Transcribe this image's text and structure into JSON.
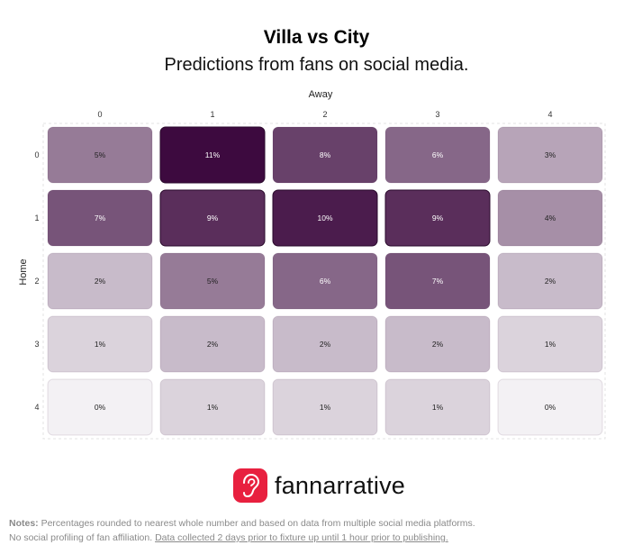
{
  "header": {
    "title": "Villa vs City",
    "subtitle": "Predictions from fans on social media."
  },
  "chart_data": {
    "type": "heatmap",
    "xlabel": "Away",
    "ylabel": "Home",
    "x_categories": [
      "0",
      "1",
      "2",
      "3",
      "4"
    ],
    "y_categories": [
      "0",
      "1",
      "2",
      "3",
      "4"
    ],
    "values": [
      [
        5,
        11,
        8,
        6,
        3
      ],
      [
        7,
        9,
        10,
        9,
        4
      ],
      [
        2,
        5,
        6,
        7,
        2
      ],
      [
        1,
        2,
        2,
        2,
        1
      ],
      [
        0,
        1,
        1,
        1,
        0
      ]
    ],
    "value_suffix": "%",
    "color_high": "#3d0a3f",
    "color_low": "#f3f1f4"
  },
  "brand": {
    "name": "fannarrative",
    "color": "#e8203f",
    "icon": "ear-icon"
  },
  "notes": {
    "label": "Notes:",
    "line1": "Percentages rounded to nearest whole number and based on data from multiple social media platforms.",
    "line2_plain": "No social profiling of fan affiliation.",
    "line2_underlined": "Data collected 2 days prior to fixture up until 1 hour prior to publishing."
  }
}
